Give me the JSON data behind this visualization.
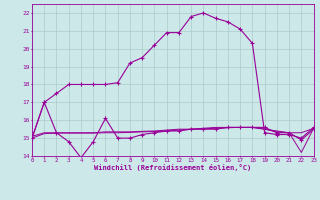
{
  "xlabel": "Windchill (Refroidissement éolien,°C)",
  "bg_color": "#cce8e8",
  "grid_color": "#aacccc",
  "line_color": "#990099",
  "xlim": [
    0,
    23
  ],
  "ylim": [
    14,
    22.5
  ],
  "xticks": [
    0,
    1,
    2,
    3,
    4,
    5,
    6,
    7,
    8,
    9,
    10,
    11,
    12,
    13,
    14,
    15,
    16,
    17,
    18,
    19,
    20,
    21,
    22,
    23
  ],
  "yticks": [
    14,
    15,
    16,
    17,
    18,
    19,
    20,
    21,
    22
  ],
  "line_main_x": [
    0,
    1,
    2,
    3,
    4,
    5,
    6,
    7,
    8,
    9,
    10,
    11,
    12,
    13,
    14,
    15,
    16,
    17,
    18,
    19,
    20,
    21,
    22,
    23
  ],
  "line_main_y": [
    15,
    17,
    17.5,
    18,
    18,
    18,
    18,
    18.1,
    19.2,
    19.5,
    20.2,
    20.9,
    20.9,
    21.8,
    22.0,
    21.7,
    21.5,
    21.1,
    20.3,
    15.3,
    15.2,
    15.2,
    15.0,
    15.6
  ],
  "line_low_x": [
    0,
    1,
    2,
    3,
    4,
    5,
    6,
    7,
    8,
    9,
    10,
    11,
    12,
    13,
    14,
    15,
    16,
    17,
    18,
    19,
    20,
    21,
    22,
    23
  ],
  "line_low_y": [
    15,
    17,
    15.3,
    14.8,
    13.9,
    14.8,
    16.1,
    15.0,
    15.0,
    15.2,
    15.3,
    15.4,
    15.4,
    15.5,
    15.5,
    15.5,
    15.6,
    15.6,
    15.6,
    15.6,
    15.3,
    15.3,
    14.9,
    15.5
  ],
  "line_flat1_x": [
    0,
    1,
    2,
    3,
    4,
    5,
    6,
    7,
    8,
    9,
    10,
    11,
    12,
    13,
    14,
    15,
    16,
    17,
    18,
    19,
    20,
    21,
    22,
    23
  ],
  "line_flat1_y": [
    15.1,
    15.3,
    15.3,
    15.3,
    15.3,
    15.3,
    15.35,
    15.35,
    15.35,
    15.38,
    15.4,
    15.45,
    15.5,
    15.5,
    15.55,
    15.6,
    15.6,
    15.6,
    15.6,
    15.5,
    15.4,
    15.3,
    15.3,
    15.55
  ],
  "line_flat2_x": [
    0,
    1,
    2,
    3,
    4,
    5,
    6,
    7,
    8,
    9,
    10,
    11,
    12,
    13,
    14,
    15,
    16,
    17,
    18,
    19,
    20,
    21,
    22,
    23
  ],
  "line_flat2_y": [
    15.0,
    15.25,
    15.28,
    15.28,
    15.28,
    15.28,
    15.3,
    15.3,
    15.32,
    15.35,
    15.37,
    15.4,
    15.45,
    15.5,
    15.52,
    15.55,
    15.58,
    15.6,
    15.6,
    15.5,
    15.35,
    15.3,
    14.2,
    15.55
  ]
}
